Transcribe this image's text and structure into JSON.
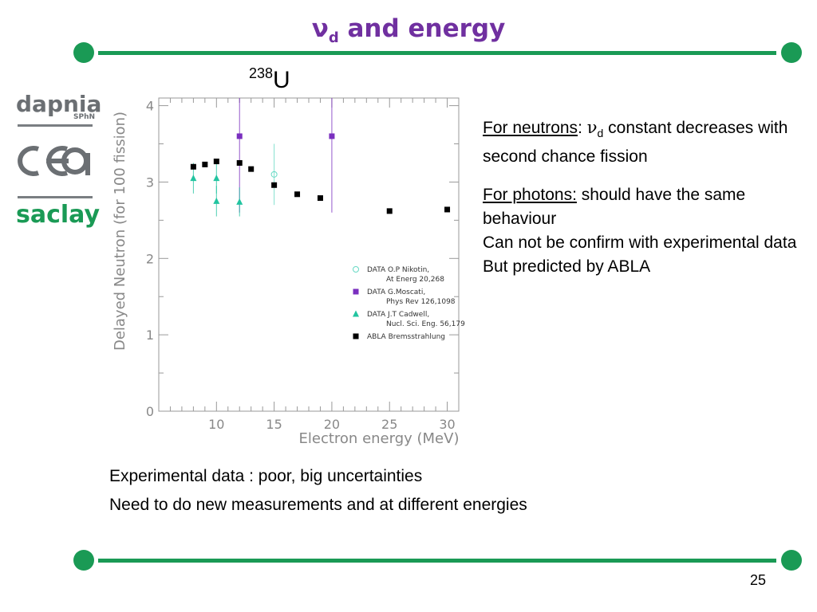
{
  "title": {
    "main": "ν",
    "sub": "d",
    "rest": " and energy"
  },
  "colors": {
    "accent_green": "#1a9a55",
    "title_purple": "#7030a0"
  },
  "logos": {
    "dapnia": "dapnia",
    "sphn": "SPhN",
    "cea": "cea",
    "saclay": "saclay"
  },
  "isotope": {
    "mass": "238",
    "symbol": "U"
  },
  "notes": {
    "neutrons_label": "For neutrons",
    "neutrons_colon": ": ",
    "nu": "ν",
    "nu_sub": "d",
    "neutrons_text": " constant decreases with second chance fission",
    "photons_label": "For photons:",
    "photons_text": " should have the same behaviour",
    "line2": "Can not be confirm with experimental data",
    "line3": "But predicted by ABLA"
  },
  "bottom": {
    "line1": "Experimental data : poor, big uncertainties",
    "line2": "Need to do new measurements and at different energies"
  },
  "page_number": "25",
  "chart_data": {
    "type": "scatter",
    "xlabel": "Electron energy (MeV)",
    "ylabel": "Delayed Neutron (for 100 fission)",
    "xlim": [
      5,
      31
    ],
    "ylim": [
      0,
      4.1
    ],
    "xticks": [
      10,
      15,
      20,
      25,
      30
    ],
    "yticks": [
      0,
      1,
      2,
      3,
      4
    ],
    "grid": false,
    "legend_placement": "center-right",
    "series": [
      {
        "name": "DATA O.P Nikotin,",
        "name2": "At Energ 20,268",
        "marker": "open-circle",
        "color": "#66d9c4",
        "points": [
          {
            "x": 15,
            "y": 3.1,
            "err_lo": 2.7,
            "err_hi": 3.5
          }
        ]
      },
      {
        "name": "DATA G.Moscati,",
        "name2": "Phys Rev 126,1098",
        "marker": "square",
        "color": "#7a2fbf",
        "points": [
          {
            "x": 12,
            "y": 3.6,
            "err_lo": 2.6,
            "err_hi": 4.1
          },
          {
            "x": 20,
            "y": 3.6,
            "err_lo": 2.6,
            "err_hi": 4.1
          }
        ]
      },
      {
        "name": "DATA J.T Cadwell,",
        "name2": "Nucl. Sci. Eng. 56,179",
        "marker": "triangle",
        "color": "#22c4a0",
        "points": [
          {
            "x": 8,
            "y": 3.05,
            "err_lo": 2.85,
            "err_hi": 3.25
          },
          {
            "x": 10,
            "y": 2.75,
            "err_lo": 2.55,
            "err_hi": 2.95
          },
          {
            "x": 10,
            "y": 3.05,
            "err_lo": 2.85,
            "err_hi": 3.25
          },
          {
            "x": 12,
            "y": 2.74,
            "err_lo": 2.55,
            "err_hi": 2.93
          }
        ]
      },
      {
        "name": "ABLA Bremsstrahlung",
        "name2": "",
        "marker": "square",
        "color": "#000000",
        "points": [
          {
            "x": 8,
            "y": 3.2
          },
          {
            "x": 9,
            "y": 3.23
          },
          {
            "x": 10,
            "y": 3.27
          },
          {
            "x": 12,
            "y": 3.25
          },
          {
            "x": 13,
            "y": 3.17
          },
          {
            "x": 15,
            "y": 2.96
          },
          {
            "x": 17,
            "y": 2.84
          },
          {
            "x": 19,
            "y": 2.79
          },
          {
            "x": 25,
            "y": 2.62
          },
          {
            "x": 30,
            "y": 2.64
          }
        ]
      }
    ]
  }
}
